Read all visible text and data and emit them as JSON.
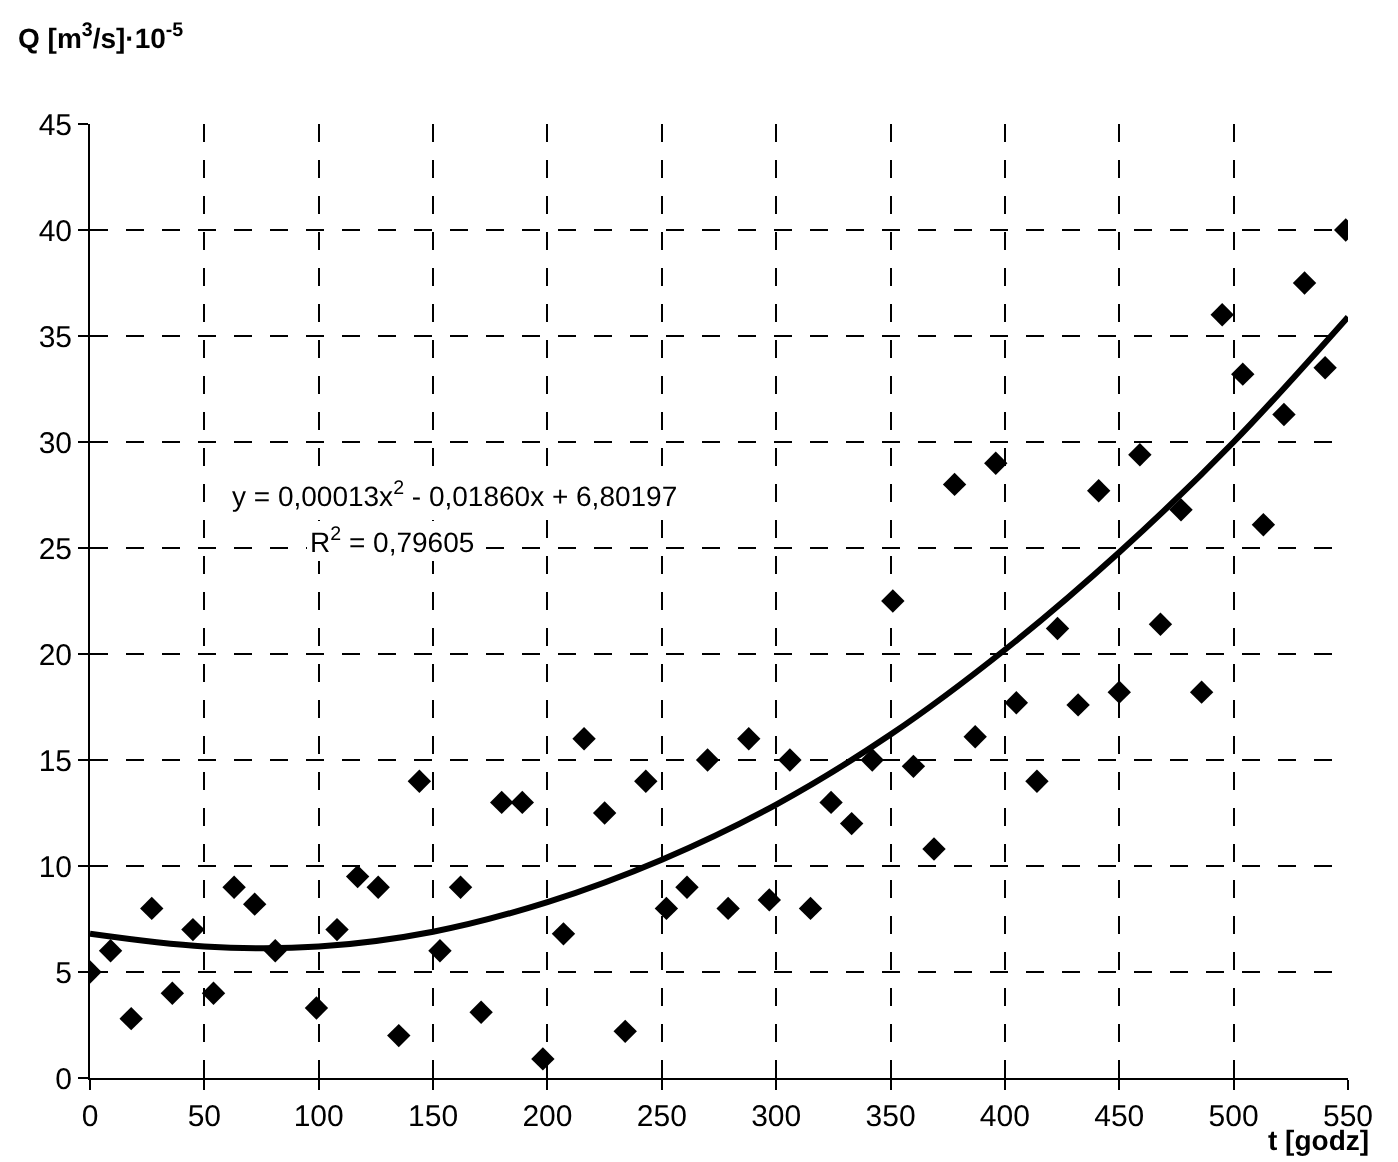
{
  "chart_data": {
    "type": "scatter",
    "xlabel": "t [godz]",
    "ylabel": "Q [m$^{3}$/s]·10$^{-5}$",
    "xlim": [
      0,
      550
    ],
    "xticks": [
      0,
      50,
      100,
      150,
      200,
      250,
      300,
      350,
      400,
      450,
      500,
      550
    ],
    "ylim": [
      0,
      45
    ],
    "yticks": [
      0,
      5,
      10,
      15,
      20,
      25,
      30,
      35,
      40,
      45
    ],
    "grid": true,
    "legend": false,
    "marker": "diamond",
    "annotations": [
      "y = 0,00013x$^{2}$ - 0,01860x + 6,80197",
      "R$^{2}$ = 0,79605"
    ],
    "series": [
      {
        "color": "#000000",
        "x": [
          0,
          9,
          18,
          27,
          36,
          45,
          54,
          63,
          72,
          81,
          99,
          108,
          117,
          126,
          135,
          144,
          153,
          162,
          171,
          180,
          189,
          198,
          207,
          216,
          225,
          234,
          243,
          252,
          261,
          270,
          279,
          288,
          297,
          306,
          315,
          324,
          333,
          342,
          351,
          360,
          369,
          378,
          387,
          396,
          405,
          414,
          423,
          432,
          441,
          450,
          459,
          468,
          477,
          486,
          495,
          504,
          513,
          522,
          531,
          540,
          549
        ],
        "values": [
          5,
          6,
          2.8,
          8,
          4,
          7,
          4,
          9,
          8.2,
          6,
          3.3,
          7,
          9.5,
          9,
          2,
          14,
          6,
          9,
          3.1,
          13,
          13,
          0.9,
          6.8,
          16,
          12.5,
          2.2,
          14,
          8,
          9,
          15,
          8,
          16,
          8.4,
          15,
          8,
          13,
          12,
          15,
          22.5,
          14.7,
          10.8,
          28,
          16.1,
          29,
          17.7,
          14,
          21.2,
          17.6,
          27.7,
          18.2,
          29.4,
          21.4,
          26.8,
          18.2,
          36,
          33.2,
          26.1,
          31.3,
          37.5,
          33.5,
          40
        ]
      },
      {
        "type": "line",
        "color": "#000000",
        "marker": "none",
        "line_style": "solid",
        "x": [
          0,
          50,
          100,
          150,
          200,
          250,
          300,
          350,
          400,
          450,
          500,
          550
        ],
        "values": [
          6.8,
          6.2,
          6.2,
          6.9,
          8.3,
          10.3,
          12.9,
          16.2,
          20.2,
          24.8,
          30.0,
          35.9
        ]
      }
    ]
  }
}
